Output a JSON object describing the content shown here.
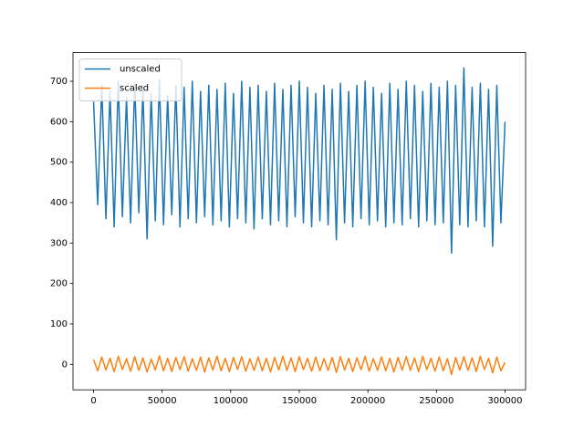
{
  "chart_data": {
    "type": "line",
    "x": [
      0,
      3000,
      6000,
      9000,
      12000,
      15000,
      18000,
      21000,
      24000,
      27000,
      30000,
      33000,
      36000,
      39000,
      42000,
      45000,
      48000,
      51000,
      54000,
      57000,
      60000,
      63000,
      66000,
      69000,
      72000,
      75000,
      78000,
      81000,
      84000,
      87000,
      90000,
      93000,
      96000,
      99000,
      102000,
      105000,
      108000,
      111000,
      114000,
      117000,
      120000,
      123000,
      126000,
      129000,
      132000,
      135000,
      138000,
      141000,
      144000,
      147000,
      150000,
      153000,
      156000,
      159000,
      162000,
      165000,
      168000,
      171000,
      174000,
      177000,
      180000,
      183000,
      186000,
      189000,
      192000,
      195000,
      198000,
      201000,
      204000,
      207000,
      210000,
      213000,
      216000,
      219000,
      222000,
      225000,
      228000,
      231000,
      234000,
      237000,
      240000,
      243000,
      246000,
      249000,
      252000,
      255000,
      258000,
      261000,
      264000,
      267000,
      270000,
      273000,
      276000,
      279000,
      282000,
      285000,
      288000,
      291000,
      294000,
      297000,
      300000
    ],
    "series": [
      {
        "name": "unscaled",
        "color": "#1f77b4",
        "values": [
          650,
          395,
          690,
          360,
          675,
          340,
          700,
          365,
          660,
          350,
          695,
          375,
          680,
          310,
          670,
          355,
          705,
          345,
          665,
          370,
          690,
          340,
          685,
          360,
          700,
          350,
          675,
          365,
          690,
          345,
          680,
          355,
          695,
          340,
          670,
          360,
          700,
          350,
          685,
          335,
          690,
          360,
          675,
          345,
          695,
          355,
          680,
          340,
          690,
          365,
          700,
          350,
          685,
          340,
          670,
          355,
          690,
          345,
          680,
          308,
          695,
          350,
          675,
          340,
          690,
          360,
          700,
          345,
          685,
          355,
          670,
          340,
          695,
          350,
          680,
          345,
          700,
          360,
          690,
          340,
          675,
          355,
          695,
          345,
          685,
          350,
          700,
          275,
          690,
          345,
          733,
          340,
          685,
          355,
          695,
          340,
          680,
          292,
          690,
          350,
          600
        ]
      },
      {
        "name": "scaled",
        "color": "#ff7f0e",
        "values": [
          12,
          -16,
          18,
          -14,
          15,
          -18,
          20,
          -13,
          14,
          -17,
          19,
          -15,
          16,
          -19,
          13,
          -14,
          21,
          -16,
          15,
          -18,
          17,
          -13,
          19,
          -17,
          14,
          -15,
          18,
          -19,
          16,
          -14,
          20,
          -16,
          15,
          -18,
          17,
          -13,
          19,
          -17,
          14,
          -15,
          18,
          -16,
          15,
          -19,
          17,
          -14,
          20,
          -15,
          16,
          -18,
          19,
          -13,
          15,
          -17,
          18,
          -16,
          14,
          -15,
          17,
          -20,
          19,
          -14,
          15,
          -18,
          16,
          -13,
          20,
          -17,
          14,
          -15,
          18,
          -16,
          15,
          -19,
          17,
          -14,
          19,
          -15,
          16,
          -18,
          20,
          -13,
          15,
          -17,
          18,
          -16,
          14,
          -25,
          17,
          -14,
          19,
          -15,
          16,
          -18,
          20,
          -13,
          15,
          -21,
          18,
          -16,
          5
        ]
      }
    ],
    "xlim": [
      -15000,
      315000
    ],
    "ylim": [
      -63,
      771
    ],
    "xticks": [
      0,
      50000,
      100000,
      150000,
      200000,
      250000,
      300000
    ],
    "yticks": [
      0,
      100,
      200,
      300,
      400,
      500,
      600,
      700
    ],
    "legend": "upper left"
  }
}
